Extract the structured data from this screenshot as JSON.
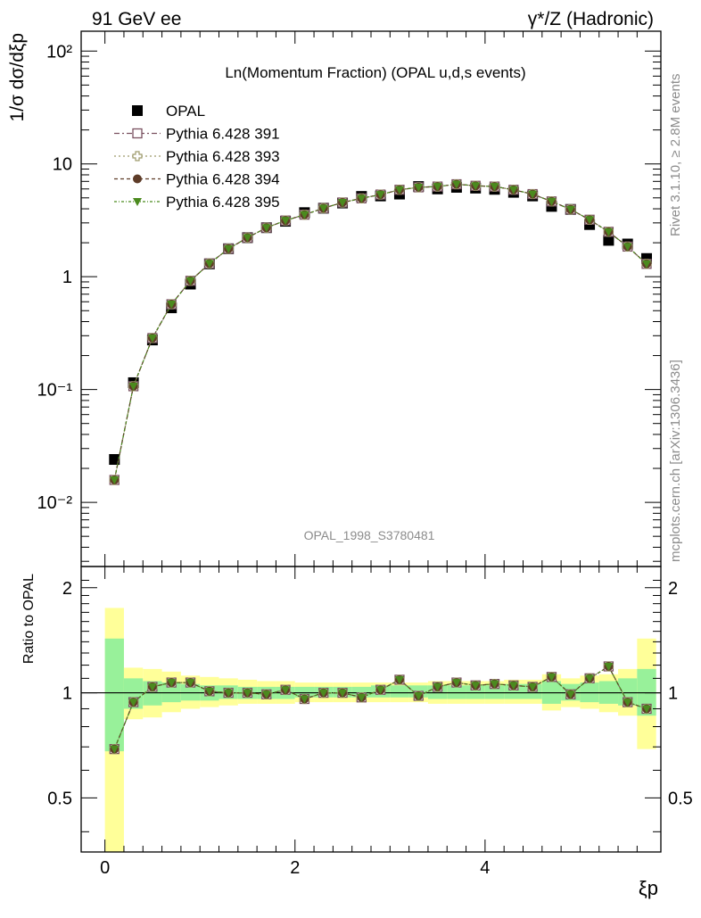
{
  "header": {
    "left": "91 GeV ee",
    "right": "γ*/Z (Hadronic)"
  },
  "side_labels": {
    "rivet": "Rivet 3.1.10, ≥ 2.8M events",
    "mcplots": "mcplots.cern.ch [arXiv:1306.3436]"
  },
  "chart_data": {
    "type": "scatter",
    "title": "Ln(Momentum Fraction) (OPAL u,d,s events)",
    "watermark": "OPAL_1998_S3780481",
    "xlabel": "ξp",
    "ylabel": "1/σ dσ/dξp",
    "ratio_ylabel": "Ratio to OPAL",
    "xlim": [
      -0.25,
      5.85
    ],
    "ylim": [
      0.0027,
      150
    ],
    "ratio_ylim": [
      0.35,
      2.3
    ],
    "yscale": "log",
    "ratio_yscale": "log",
    "x_ticks": [
      "0",
      "2",
      "4"
    ],
    "y_ticks": [
      "10⁻²",
      "10⁻¹",
      "1",
      "10",
      "10²"
    ],
    "ratio_y_ticks": [
      "0.5",
      "1",
      "2"
    ],
    "legend_position": "top-left",
    "x": [
      0.1,
      0.3,
      0.5,
      0.7,
      0.9,
      1.1,
      1.3,
      1.5,
      1.7,
      1.9,
      2.1,
      2.3,
      2.5,
      2.7,
      2.9,
      3.1,
      3.3,
      3.5,
      3.7,
      3.9,
      4.1,
      4.3,
      4.5,
      4.7,
      4.9,
      5.1,
      5.3,
      5.5,
      5.7
    ],
    "data": {
      "name": "OPAL",
      "values": [
        0.024,
        0.115,
        0.275,
        0.53,
        0.86,
        1.3,
        1.77,
        2.22,
        2.72,
        3.1,
        3.7,
        4.05,
        4.5,
        5.15,
        5.2,
        5.4,
        6.3,
        6.0,
        6.2,
        6.1,
        5.95,
        5.6,
        5.2,
        4.2,
        3.95,
        2.9,
        2.1,
        1.95,
        1.45
      ]
    },
    "series": [
      {
        "name": "Pythia 6.428 391",
        "values": [
          0.0158,
          0.107,
          0.286,
          0.57,
          0.92,
          1.31,
          1.77,
          2.22,
          2.72,
          3.15,
          3.55,
          4.05,
          4.55,
          4.95,
          5.35,
          5.9,
          6.2,
          6.3,
          6.6,
          6.4,
          6.3,
          5.9,
          5.4,
          4.65,
          3.95,
          3.2,
          2.5,
          1.85,
          1.3
        ],
        "color": "#7a5160"
      },
      {
        "name": "Pythia 6.428 393",
        "values": [
          0.0158,
          0.107,
          0.286,
          0.57,
          0.92,
          1.31,
          1.77,
          2.22,
          2.72,
          3.15,
          3.55,
          4.05,
          4.55,
          4.95,
          5.35,
          5.9,
          6.2,
          6.3,
          6.6,
          6.4,
          6.3,
          5.9,
          5.4,
          4.65,
          3.95,
          3.2,
          2.5,
          1.85,
          1.3
        ],
        "color": "#9d9a6b"
      },
      {
        "name": "Pythia 6.428 394",
        "values": [
          0.0158,
          0.107,
          0.286,
          0.57,
          0.92,
          1.31,
          1.77,
          2.22,
          2.72,
          3.15,
          3.55,
          4.05,
          4.55,
          4.95,
          5.35,
          5.9,
          6.2,
          6.3,
          6.6,
          6.4,
          6.3,
          5.9,
          5.4,
          4.65,
          3.95,
          3.2,
          2.5,
          1.85,
          1.3
        ],
        "color": "#5e3c28"
      },
      {
        "name": "Pythia 6.428 395",
        "values": [
          0.0158,
          0.107,
          0.286,
          0.57,
          0.92,
          1.31,
          1.77,
          2.22,
          2.72,
          3.15,
          3.55,
          4.05,
          4.55,
          4.95,
          5.35,
          5.9,
          6.2,
          6.3,
          6.6,
          6.4,
          6.3,
          5.9,
          5.4,
          4.65,
          3.95,
          3.2,
          2.5,
          1.85,
          1.3
        ],
        "color": "#4b8a1e"
      }
    ],
    "ratio_values": [
      0.69,
      0.94,
      1.04,
      1.07,
      1.07,
      1.01,
      1.0,
      1.0,
      0.99,
      1.02,
      0.96,
      1.0,
      1.0,
      0.97,
      1.02,
      1.09,
      0.98,
      1.04,
      1.07,
      1.05,
      1.06,
      1.05,
      1.04,
      1.11,
      0.99,
      1.1,
      1.19,
      0.94,
      0.9
    ],
    "band_inner": [
      [
        0.68,
        1.43
      ],
      [
        0.9,
        1.1
      ],
      [
        0.92,
        1.08
      ],
      [
        0.94,
        1.07
      ],
      [
        0.95,
        1.06
      ],
      [
        0.95,
        1.05
      ],
      [
        0.96,
        1.05
      ],
      [
        0.96,
        1.04
      ],
      [
        0.96,
        1.04
      ],
      [
        0.96,
        1.04
      ],
      [
        0.97,
        1.04
      ],
      [
        0.97,
        1.04
      ],
      [
        0.97,
        1.04
      ],
      [
        0.97,
        1.04
      ],
      [
        0.97,
        1.05
      ],
      [
        0.97,
        1.05
      ],
      [
        0.97,
        1.05
      ],
      [
        0.96,
        1.05
      ],
      [
        0.96,
        1.05
      ],
      [
        0.96,
        1.05
      ],
      [
        0.96,
        1.05
      ],
      [
        0.96,
        1.06
      ],
      [
        0.96,
        1.06
      ],
      [
        0.93,
        1.08
      ],
      [
        0.95,
        1.06
      ],
      [
        0.94,
        1.07
      ],
      [
        0.93,
        1.08
      ],
      [
        0.92,
        1.1
      ],
      [
        0.86,
        1.17
      ]
    ],
    "band_outer": [
      [
        0.3,
        1.75
      ],
      [
        0.84,
        1.18
      ],
      [
        0.85,
        1.17
      ],
      [
        0.88,
        1.15
      ],
      [
        0.9,
        1.12
      ],
      [
        0.91,
        1.11
      ],
      [
        0.92,
        1.1
      ],
      [
        0.93,
        1.09
      ],
      [
        0.93,
        1.08
      ],
      [
        0.93,
        1.08
      ],
      [
        0.94,
        1.07
      ],
      [
        0.94,
        1.07
      ],
      [
        0.94,
        1.07
      ],
      [
        0.94,
        1.07
      ],
      [
        0.94,
        1.07
      ],
      [
        0.94,
        1.07
      ],
      [
        0.94,
        1.07
      ],
      [
        0.93,
        1.08
      ],
      [
        0.93,
        1.08
      ],
      [
        0.93,
        1.08
      ],
      [
        0.93,
        1.08
      ],
      [
        0.93,
        1.09
      ],
      [
        0.93,
        1.09
      ],
      [
        0.89,
        1.13
      ],
      [
        0.91,
        1.1
      ],
      [
        0.9,
        1.12
      ],
      [
        0.88,
        1.13
      ],
      [
        0.86,
        1.17
      ],
      [
        0.69,
        1.43
      ]
    ],
    "band_inner_color": "#98f19a",
    "band_outer_color": "#ffff99"
  }
}
